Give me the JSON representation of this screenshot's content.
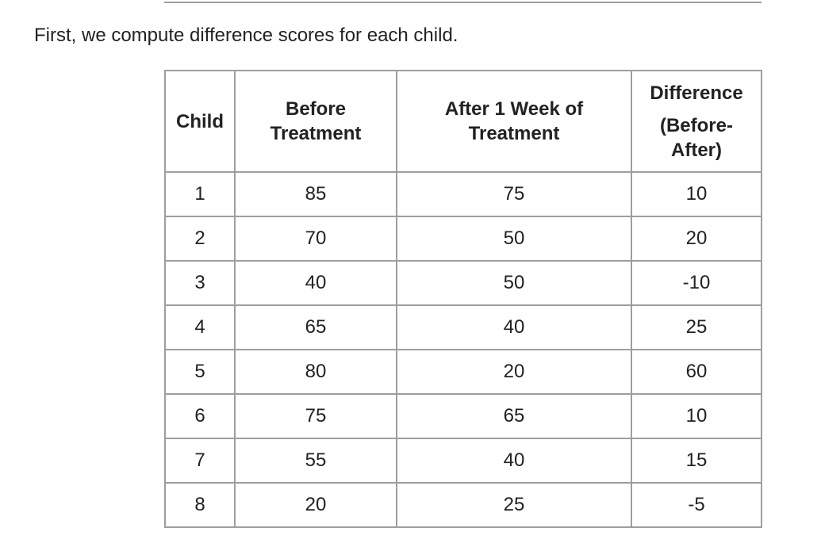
{
  "intro_text": "First, we compute difference scores for each child.",
  "table": {
    "headers": {
      "child": "Child",
      "before": "Before Treatment",
      "after": "After 1 Week of Treatment",
      "difference_line1": "Difference",
      "difference_line2": "(Before-After)"
    },
    "rows": [
      {
        "child": "1",
        "before": "85",
        "after": "75",
        "difference": "10"
      },
      {
        "child": "2",
        "before": "70",
        "after": "50",
        "difference": "20"
      },
      {
        "child": "3",
        "before": "40",
        "after": "50",
        "difference": "-10"
      },
      {
        "child": "4",
        "before": "65",
        "after": "40",
        "difference": "25"
      },
      {
        "child": "5",
        "before": "80",
        "after": "20",
        "difference": "60"
      },
      {
        "child": "6",
        "before": "75",
        "after": "65",
        "difference": "10"
      },
      {
        "child": "7",
        "before": "55",
        "after": "40",
        "difference": "15"
      },
      {
        "child": "8",
        "before": "20",
        "after": "25",
        "difference": "-5"
      }
    ]
  }
}
